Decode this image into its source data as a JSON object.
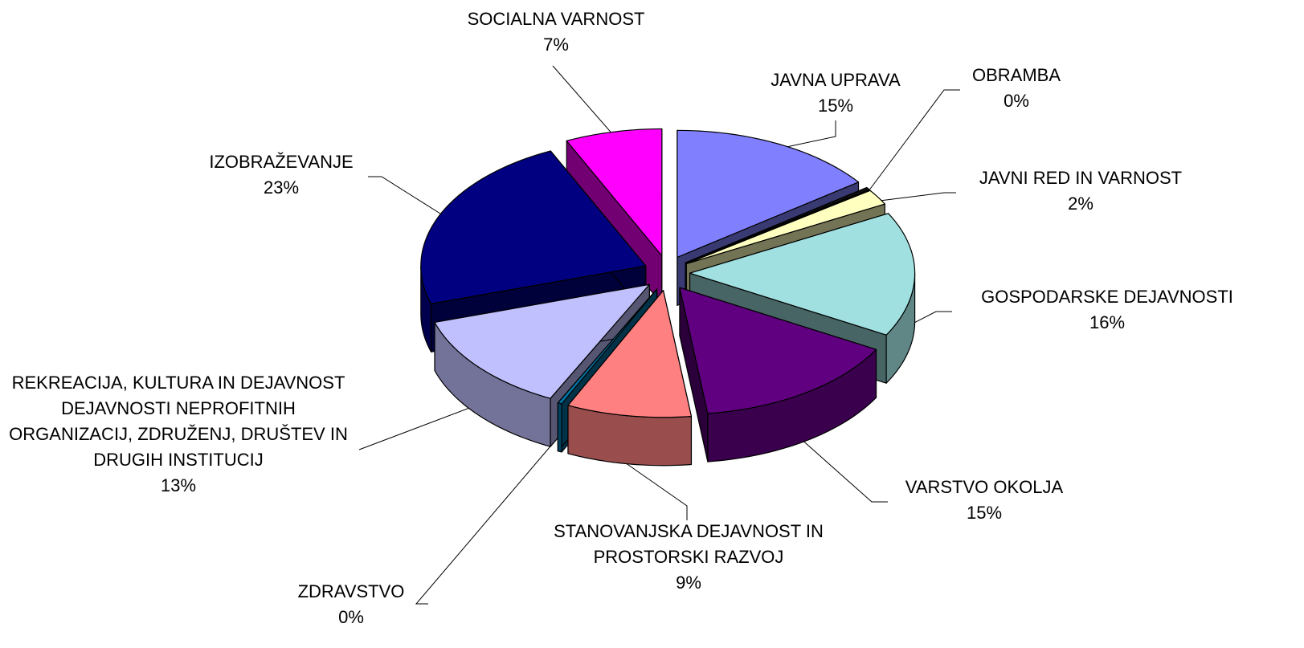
{
  "chart_data": {
    "type": "pie3d",
    "categories": [
      "JAVNA UPRAVA",
      "OBRAMBA",
      "JAVNI RED IN VARNOST",
      "GOSPODARSKE DEJAVNOSTI",
      "VARSTVO OKOLJA",
      "STANOVANJSKA DEJAVNOST IN PROSTORSKI RAZVOJ",
      "ZDRAVSTVO",
      "REKREACIJA, KULTURA IN DEJAVNOST DEJAVNOSTI NEPROFITNIH ORGANIZACIJ, ZDRUŽENJ, DRUŠTEV IN DRUGIH INSTITUCIJ",
      "IZOBRAŽEVANJE",
      "SOCIALNA VARNOST"
    ],
    "values": [
      15,
      0.3,
      2,
      16,
      15,
      9,
      0.3,
      13,
      23,
      7
    ],
    "value_labels": [
      "15%",
      "0%",
      "2%",
      "16%",
      "15%",
      "9%",
      "0%",
      "13%",
      "23%",
      "7%"
    ],
    "colors": [
      "#8080ff",
      "#101010",
      "#ffffc0",
      "#a0e0e0",
      "#600080",
      "#ff8080",
      "#0070a0",
      "#c0c0ff",
      "#000080",
      "#ff00ff"
    ]
  }
}
